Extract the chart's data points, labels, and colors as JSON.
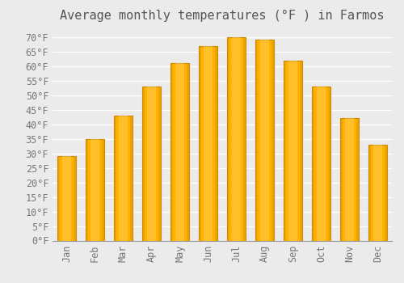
{
  "title": "Average monthly temperatures (°F ) in Farmos",
  "months": [
    "Jan",
    "Feb",
    "Mar",
    "Apr",
    "May",
    "Jun",
    "Jul",
    "Aug",
    "Sep",
    "Oct",
    "Nov",
    "Dec"
  ],
  "values": [
    29,
    35,
    43,
    53,
    61,
    67,
    70,
    69,
    62,
    53,
    42,
    33
  ],
  "bar_color_center": "#FFB300",
  "bar_color_edge": "#E8960A",
  "bar_border_color": "#CC8800",
  "background_color": "#EBEBEB",
  "grid_color": "#FFFFFF",
  "text_color": "#777777",
  "ylim": [
    0,
    73
  ],
  "yticks": [
    0,
    5,
    10,
    15,
    20,
    25,
    30,
    35,
    40,
    45,
    50,
    55,
    60,
    65,
    70
  ],
  "title_fontsize": 11,
  "tick_fontsize": 8.5,
  "font_family": "monospace"
}
